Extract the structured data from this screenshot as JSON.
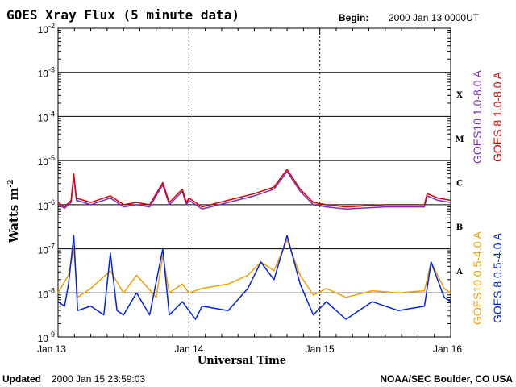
{
  "chart_data": {
    "type": "line",
    "title": "GOES Xray Flux (5 minute data)",
    "begin_label": "Begin:",
    "begin_value": "2000 Jan 13 0000UT",
    "xlabel": "Universal Time",
    "ylabel": "Watts m",
    "ylabel_sup": "-2",
    "x_ticks": [
      "Jan 13",
      "Jan 14",
      "Jan 15",
      "Jan 16"
    ],
    "x_range_days": [
      0,
      3
    ],
    "ylim_log10": [
      -9,
      -2
    ],
    "y_ticks": [
      {
        "base": "10",
        "exp": "-2"
      },
      {
        "base": "10",
        "exp": "-3"
      },
      {
        "base": "10",
        "exp": "-4"
      },
      {
        "base": "10",
        "exp": "-5"
      },
      {
        "base": "10",
        "exp": "-6"
      },
      {
        "base": "10",
        "exp": "-7"
      },
      {
        "base": "10",
        "exp": "-8"
      },
      {
        "base": "10",
        "exp": "-9"
      }
    ],
    "flare_classes": [
      {
        "label": "X",
        "log10": -3.5
      },
      {
        "label": "M",
        "log10": -4.5
      },
      {
        "label": "C",
        "log10": -5.5
      },
      {
        "label": "B",
        "log10": -6.5
      },
      {
        "label": "A",
        "log10": -7.5
      }
    ],
    "series": [
      {
        "name": "GOES10 1.0-8.0 A",
        "color": "#7b2fbe",
        "points": [
          [
            0.0,
            -6.0
          ],
          [
            0.05,
            -6.08
          ],
          [
            0.1,
            -5.95
          ],
          [
            0.12,
            -5.35
          ],
          [
            0.14,
            -5.9
          ],
          [
            0.25,
            -6.0
          ],
          [
            0.35,
            -5.9
          ],
          [
            0.4,
            -5.85
          ],
          [
            0.5,
            -6.05
          ],
          [
            0.6,
            -6.0
          ],
          [
            0.7,
            -6.05
          ],
          [
            0.8,
            -5.55
          ],
          [
            0.85,
            -6.0
          ],
          [
            0.95,
            -5.7
          ],
          [
            0.98,
            -6.0
          ],
          [
            1.0,
            -5.9
          ],
          [
            1.1,
            -6.1
          ],
          [
            1.3,
            -5.95
          ],
          [
            1.5,
            -5.8
          ],
          [
            1.65,
            -5.65
          ],
          [
            1.75,
            -5.25
          ],
          [
            1.85,
            -5.7
          ],
          [
            1.95,
            -6.0
          ],
          [
            2.05,
            -6.05
          ],
          [
            2.2,
            -6.1
          ],
          [
            2.5,
            -6.05
          ],
          [
            2.8,
            -6.05
          ],
          [
            2.82,
            -5.8
          ],
          [
            2.9,
            -5.9
          ],
          [
            3.0,
            -5.95
          ]
        ]
      },
      {
        "name": "GOES 8 1.0-8.0 A",
        "color": "#e00000",
        "points": [
          [
            0.0,
            -5.95
          ],
          [
            0.05,
            -6.05
          ],
          [
            0.1,
            -5.9
          ],
          [
            0.12,
            -5.3
          ],
          [
            0.14,
            -5.85
          ],
          [
            0.25,
            -5.95
          ],
          [
            0.35,
            -5.85
          ],
          [
            0.4,
            -5.8
          ],
          [
            0.5,
            -6.0
          ],
          [
            0.6,
            -5.95
          ],
          [
            0.7,
            -6.0
          ],
          [
            0.8,
            -5.5
          ],
          [
            0.85,
            -5.95
          ],
          [
            0.95,
            -5.65
          ],
          [
            0.98,
            -5.95
          ],
          [
            1.0,
            -5.85
          ],
          [
            1.1,
            -6.05
          ],
          [
            1.3,
            -5.9
          ],
          [
            1.5,
            -5.75
          ],
          [
            1.65,
            -5.6
          ],
          [
            1.75,
            -5.2
          ],
          [
            1.85,
            -5.65
          ],
          [
            1.95,
            -5.95
          ],
          [
            2.05,
            -6.0
          ],
          [
            2.2,
            -6.05
          ],
          [
            2.5,
            -6.0
          ],
          [
            2.8,
            -6.0
          ],
          [
            2.82,
            -5.75
          ],
          [
            2.9,
            -5.85
          ],
          [
            3.0,
            -5.9
          ]
        ]
      },
      {
        "name": "GOES10 0.5-4.0 A",
        "color": "#f0a000",
        "points": [
          [
            0.0,
            -8.0
          ],
          [
            0.08,
            -7.6
          ],
          [
            0.12,
            -7.0
          ],
          [
            0.15,
            -8.1
          ],
          [
            0.25,
            -7.9
          ],
          [
            0.4,
            -7.5
          ],
          [
            0.5,
            -8.0
          ],
          [
            0.6,
            -7.6
          ],
          [
            0.75,
            -8.1
          ],
          [
            0.8,
            -7.15
          ],
          [
            0.85,
            -8.0
          ],
          [
            0.95,
            -7.8
          ],
          [
            1.0,
            -8.0
          ],
          [
            1.1,
            -7.9
          ],
          [
            1.3,
            -7.8
          ],
          [
            1.45,
            -7.6
          ],
          [
            1.55,
            -7.3
          ],
          [
            1.65,
            -7.5
          ],
          [
            1.75,
            -6.8
          ],
          [
            1.85,
            -7.6
          ],
          [
            1.95,
            -8.05
          ],
          [
            2.05,
            -7.9
          ],
          [
            2.2,
            -8.1
          ],
          [
            2.4,
            -7.95
          ],
          [
            2.6,
            -8.0
          ],
          [
            2.8,
            -7.95
          ],
          [
            2.85,
            -7.3
          ],
          [
            2.95,
            -7.9
          ],
          [
            3.0,
            -8.0
          ]
        ]
      },
      {
        "name": "GOES 8 0.5-4.0 A",
        "color": "#0022ee",
        "points": [
          [
            0.0,
            -8.2
          ],
          [
            0.05,
            -8.3
          ],
          [
            0.08,
            -7.8
          ],
          [
            0.12,
            -6.7
          ],
          [
            0.15,
            -8.4
          ],
          [
            0.25,
            -8.3
          ],
          [
            0.35,
            -8.5
          ],
          [
            0.4,
            -7.1
          ],
          [
            0.45,
            -8.4
          ],
          [
            0.5,
            -8.5
          ],
          [
            0.6,
            -8.0
          ],
          [
            0.7,
            -8.5
          ],
          [
            0.8,
            -7.0
          ],
          [
            0.85,
            -8.5
          ],
          [
            0.95,
            -8.2
          ],
          [
            1.0,
            -8.4
          ],
          [
            1.05,
            -8.6
          ],
          [
            1.1,
            -8.3
          ],
          [
            1.3,
            -8.4
          ],
          [
            1.45,
            -7.9
          ],
          [
            1.55,
            -7.3
          ],
          [
            1.65,
            -7.7
          ],
          [
            1.75,
            -6.7
          ],
          [
            1.85,
            -7.8
          ],
          [
            1.95,
            -8.5
          ],
          [
            2.05,
            -8.2
          ],
          [
            2.2,
            -8.6
          ],
          [
            2.4,
            -8.2
          ],
          [
            2.6,
            -8.4
          ],
          [
            2.8,
            -8.3
          ],
          [
            2.85,
            -7.3
          ],
          [
            2.95,
            -8.1
          ],
          [
            3.0,
            -8.2
          ]
        ]
      }
    ]
  },
  "footer": {
    "updated_label": "Updated",
    "updated_value": "2000 Jan 15 23:59:03",
    "credit": "NOAA/SEC Boulder, CO USA"
  }
}
